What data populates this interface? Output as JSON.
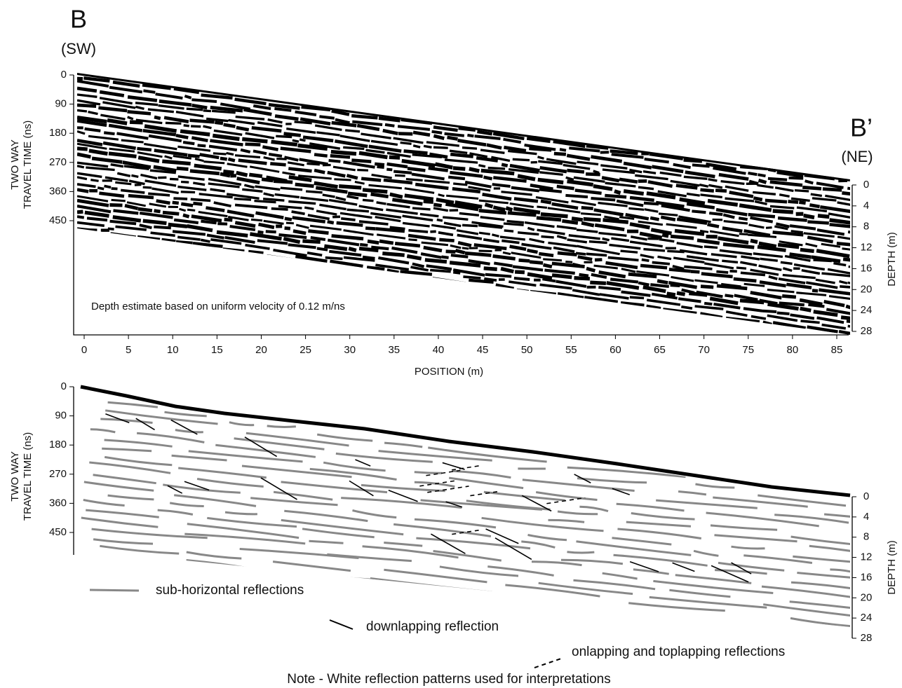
{
  "top": {
    "label_left": "B",
    "dir_left": "(SW)",
    "label_right": "B’",
    "dir_right": "(NE)",
    "y_title": [
      "TWO WAY",
      "TRAVEL TIME (ns)"
    ],
    "yticks": [
      0,
      90,
      180,
      270,
      360,
      450
    ],
    "depth_title": "DEPTH (m)",
    "depth_ticks": [
      0,
      4,
      8,
      12,
      16,
      20,
      24,
      28
    ],
    "xticks": [
      0,
      5,
      10,
      15,
      20,
      25,
      30,
      35,
      40,
      45,
      50,
      55,
      60,
      65,
      70,
      75,
      80,
      85
    ],
    "x_title": "POSITION (m)",
    "note": "Depth estimate based on uniform velocity of 0.12 m/ns"
  },
  "bottom": {
    "y_title": [
      "TWO WAY",
      "TRAVEL TIME (ns)"
    ],
    "yticks": [
      0,
      90,
      180,
      270,
      360,
      450
    ],
    "depth_title": "DEPTH (m)",
    "depth_ticks": [
      0,
      4,
      8,
      12,
      16,
      20,
      24,
      28
    ],
    "legend": [
      "sub-horizontal reflections",
      "downlapping reflection",
      "onlapping and toplapping reflections"
    ],
    "note": "Note - White reflection patterns used for interpretations"
  }
}
